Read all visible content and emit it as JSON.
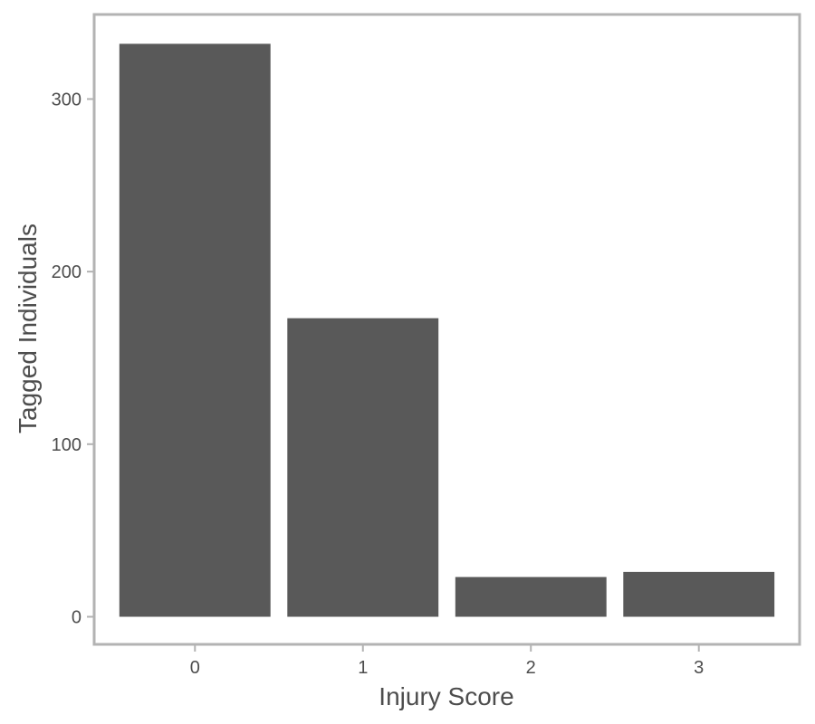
{
  "chart_data": {
    "type": "bar",
    "title": "",
    "xlabel": "Injury Score",
    "ylabel": "Tagged Individuals",
    "categories": [
      "0",
      "1",
      "2",
      "3"
    ],
    "values": [
      332,
      173,
      23,
      26
    ],
    "ylim": [
      -16,
      349
    ],
    "yticks": [
      0,
      100,
      200,
      300
    ],
    "grid": false,
    "legend": "none",
    "colors": {
      "bar": "#595959",
      "panel_border": "#b3b3b3",
      "tick": "#b3b3b3",
      "text": "#4d4d4d"
    }
  }
}
